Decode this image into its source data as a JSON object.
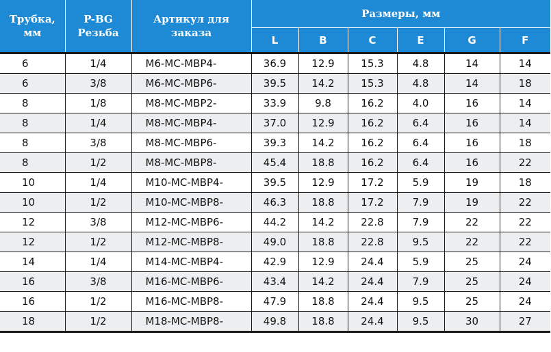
{
  "header": {
    "tube": "Трубка, мм",
    "thread": "P-BG Резьба",
    "article": "Артикул для заказа",
    "sizes": "Размеры, мм",
    "dims": [
      "L",
      "B",
      "C",
      "E",
      "G",
      "F"
    ]
  },
  "rows": [
    [
      "6",
      "1/4",
      "M6-MC-MBP4-",
      "36.9",
      "12.9",
      "15.3",
      "4.8",
      "14",
      "14"
    ],
    [
      "6",
      "3/8",
      "M6-MC-MBP6-",
      "39.5",
      "14.2",
      "15.3",
      "4.8",
      "14",
      "18"
    ],
    [
      "8",
      "1/8",
      "M8-MC-MBP2-",
      "33.9",
      "9.8",
      "16.2",
      "4.0",
      "16",
      "14"
    ],
    [
      "8",
      "1/4",
      "M8-MC-MBP4-",
      "37.0",
      "12.9",
      "16.2",
      "6.4",
      "16",
      "14"
    ],
    [
      "8",
      "3/8",
      "M8-MC-MBP6-",
      "39.3",
      "14.2",
      "16.2",
      "6.4",
      "16",
      "18"
    ],
    [
      "8",
      "1/2",
      "M8-MC-MBP8-",
      "45.4",
      "18.8",
      "16.2",
      "6.4",
      "16",
      "22"
    ],
    [
      "10",
      "1/4",
      "M10-MC-MBP4-",
      "39.5",
      "12.9",
      "17.2",
      "5.9",
      "19",
      "18"
    ],
    [
      "10",
      "1/2",
      "M10-MC-MBP8-",
      "46.3",
      "18.8",
      "17.2",
      "7.9",
      "19",
      "22"
    ],
    [
      "12",
      "3/8",
      "M12-MC-MBP6-",
      "44.2",
      "14.2",
      "22.8",
      "7.9",
      "22",
      "22"
    ],
    [
      "12",
      "1/2",
      "M12-MC-MBP8-",
      "49.0",
      "18.8",
      "22.8",
      "9.5",
      "22",
      "22"
    ],
    [
      "14",
      "1/4",
      "M14-MC-MBP4-",
      "42.9",
      "12.9",
      "24.4",
      "5.9",
      "25",
      "24"
    ],
    [
      "16",
      "3/8",
      "M16-MC-MBP6-",
      "43.4",
      "14.2",
      "24.4",
      "7.9",
      "25",
      "24"
    ],
    [
      "16",
      "1/2",
      "M16-MC-MBP8-",
      "47.9",
      "18.8",
      "24.4",
      "9.5",
      "25",
      "24"
    ],
    [
      "18",
      "1/2",
      "M18-MC-MBP8-",
      "49.8",
      "18.8",
      "24.4",
      "9.5",
      "30",
      "27"
    ]
  ]
}
